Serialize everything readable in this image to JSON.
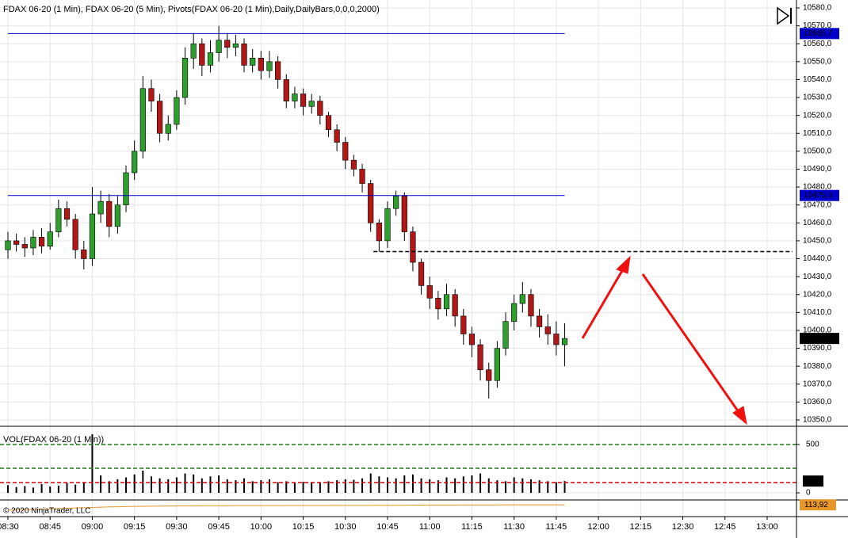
{
  "chart_data": {
    "type": "candlestick",
    "title": "FDAX 06-20 (1 Min), FDAX 06-20 (5 Min), Pivots(FDAX 06-20 (1 Min),Daily,DailyBars,0,0,0,2000)",
    "copyright": "© 2020 NinjaTrader, LLC",
    "x": [
      "08:30",
      "08:33",
      "08:36",
      "08:39",
      "08:42",
      "08:45",
      "08:48",
      "08:51",
      "08:54",
      "08:57",
      "09:00",
      "09:03",
      "09:06",
      "09:09",
      "09:12",
      "09:15",
      "09:18",
      "09:21",
      "09:24",
      "09:27",
      "09:30",
      "09:33",
      "09:36",
      "09:39",
      "09:42",
      "09:45",
      "09:48",
      "09:51",
      "09:54",
      "09:57",
      "10:00",
      "10:03",
      "10:06",
      "10:09",
      "10:12",
      "10:15",
      "10:18",
      "10:21",
      "10:24",
      "10:27",
      "10:30",
      "10:33",
      "10:36",
      "10:39",
      "10:42",
      "10:45",
      "10:48",
      "10:51",
      "10:54",
      "10:57",
      "11:00",
      "11:03",
      "11:06",
      "11:09",
      "11:12",
      "11:15",
      "11:18",
      "11:21",
      "11:24",
      "11:27",
      "11:30",
      "11:33",
      "11:36",
      "11:39",
      "11:42",
      "11:45",
      "11:48"
    ],
    "open": [
      10445,
      10450,
      10448,
      10446,
      10452,
      10447,
      10455,
      10468,
      10462,
      10445,
      10440,
      10465,
      10472,
      10458,
      10470,
      10488,
      10500,
      10535,
      10528,
      10510,
      10515,
      10530,
      10552,
      10560,
      10548,
      10555,
      10562,
      10558,
      10560,
      10548,
      10552,
      10545,
      10550,
      10540,
      10528,
      10532,
      10525,
      10528,
      10520,
      10512,
      10505,
      10495,
      10490,
      10482,
      10460,
      10450,
      10468,
      10475,
      10455,
      10438,
      10425,
      10418,
      10412,
      10420,
      10408,
      10398,
      10392,
      10378,
      10372,
      10390,
      10405,
      10415,
      10420,
      10408,
      10402,
      10398,
      10392
    ],
    "high": [
      10455,
      10454,
      10452,
      10456,
      10457,
      10460,
      10473,
      10472,
      10465,
      10450,
      10480,
      10478,
      10476,
      10475,
      10492,
      10506,
      10542,
      10540,
      10532,
      10520,
      10534,
      10558,
      10566,
      10563,
      10562,
      10570,
      10566,
      10565,
      10563,
      10557,
      10556,
      10556,
      10553,
      10543,
      10536,
      10535,
      10532,
      10531,
      10522,
      10515,
      10508,
      10498,
      10493,
      10484,
      10462,
      10472,
      10478,
      10477,
      10458,
      10440,
      10430,
      10422,
      10426,
      10423,
      10412,
      10402,
      10395,
      10382,
      10394,
      10410,
      10420,
      10427,
      10423,
      10412,
      10409,
      10405,
      10404
    ],
    "low": [
      10440,
      10444,
      10441,
      10442,
      10443,
      10445,
      10452,
      10458,
      10440,
      10434,
      10436,
      10460,
      10452,
      10454,
      10466,
      10484,
      10496,
      10522,
      10505,
      10506,
      10512,
      10526,
      10546,
      10542,
      10544,
      10550,
      10552,
      10553,
      10544,
      10544,
      10540,
      10541,
      10535,
      10524,
      10524,
      10520,
      10521,
      10515,
      10508,
      10500,
      10490,
      10486,
      10477,
      10455,
      10444,
      10446,
      10464,
      10450,
      10433,
      10420,
      10412,
      10406,
      10408,
      10402,
      10392,
      10385,
      10372,
      10362,
      10368,
      10386,
      10400,
      10410,
      10402,
      10396,
      10392,
      10386,
      10380
    ],
    "close": [
      10450,
      10448,
      10446,
      10452,
      10447,
      10455,
      10468,
      10462,
      10445,
      10440,
      10465,
      10472,
      10458,
      10470,
      10488,
      10500,
      10535,
      10528,
      10510,
      10515,
      10530,
      10552,
      10560,
      10548,
      10555,
      10562,
      10558,
      10560,
      10548,
      10552,
      10545,
      10550,
      10540,
      10528,
      10532,
      10525,
      10528,
      10520,
      10512,
      10505,
      10495,
      10490,
      10482,
      10460,
      10450,
      10468,
      10475,
      10455,
      10438,
      10425,
      10418,
      10412,
      10420,
      10408,
      10398,
      10392,
      10378,
      10372,
      10390,
      10405,
      10415,
      10420,
      10408,
      10402,
      10398,
      10392,
      10395.5
    ],
    "up_color": "#2e9e2e",
    "down_color": "#b01818",
    "last_price": {
      "value": 10395.5,
      "label": "10395,5"
    },
    "hlines": [
      {
        "value": 10565.7,
        "label": "10565,7",
        "color": "#0000c8",
        "from": "08:30",
        "to": "11:48"
      },
      {
        "value": 10475.3,
        "label": "10475,3",
        "color": "#0000c8",
        "from": "08:30",
        "to": "11:48"
      }
    ],
    "level": {
      "value": 10444,
      "from": "10:40",
      "color": "#000000"
    },
    "ylim": [
      10350,
      10580
    ],
    "yticks": [
      {
        "value": 10350,
        "label": "10350,0"
      },
      {
        "value": 10360,
        "label": "10360,0"
      },
      {
        "value": 10370,
        "label": "10370,0"
      },
      {
        "value": 10380,
        "label": "10380,0"
      },
      {
        "value": 10390,
        "label": "10390,0"
      },
      {
        "value": 10400,
        "label": "10400,0"
      },
      {
        "value": 10410,
        "label": "10410,0"
      },
      {
        "value": 10420,
        "label": "10420,0"
      },
      {
        "value": 10430,
        "label": "10430,0"
      },
      {
        "value": 10440,
        "label": "10440,0"
      },
      {
        "value": 10450,
        "label": "10450,0"
      },
      {
        "value": 10460,
        "label": "10460,0"
      },
      {
        "value": 10470,
        "label": "10470,0"
      },
      {
        "value": 10480,
        "label": "10480,0"
      },
      {
        "value": 10490,
        "label": "10490,0"
      },
      {
        "value": 10500,
        "label": "10500,0"
      },
      {
        "value": 10510,
        "label": "10510,0"
      },
      {
        "value": 10520,
        "label": "10520,0"
      },
      {
        "value": 10530,
        "label": "10530,0"
      },
      {
        "value": 10540,
        "label": "10540,0"
      },
      {
        "value": 10550,
        "label": "10550,0"
      },
      {
        "value": 10560,
        "label": "10560,0"
      },
      {
        "value": 10570,
        "label": "10570,0"
      },
      {
        "value": 10580,
        "label": "10580,0"
      }
    ],
    "xlim": [
      "08:30",
      "13:00"
    ],
    "xticks": [
      "08:30",
      "08:45",
      "09:00",
      "09:15",
      "09:30",
      "09:45",
      "10:00",
      "10:15",
      "10:30",
      "10:45",
      "11:00",
      "11:15",
      "11:30",
      "11:45",
      "12:00",
      "12:15",
      "12:30",
      "12:45",
      "13:00"
    ],
    "grid": true,
    "volume": {
      "title": "VOL(FDAX 06-20 (1 Min))",
      "values": [
        80,
        60,
        70,
        55,
        90,
        65,
        75,
        100,
        85,
        110,
        606,
        180,
        120,
        140,
        160,
        190,
        230,
        170,
        150,
        140,
        160,
        200,
        190,
        150,
        170,
        180,
        140,
        130,
        150,
        120,
        130,
        140,
        110,
        120,
        100,
        115,
        105,
        110,
        120,
        130,
        140,
        135,
        150,
        200,
        170,
        160,
        150,
        180,
        190,
        150,
        140,
        130,
        160,
        150,
        170,
        180,
        200,
        150,
        130,
        120,
        160,
        150,
        140,
        130,
        120,
        110,
        122
      ],
      "color": "#000000",
      "ylim": [
        0,
        672
      ],
      "yticks": [
        0,
        500
      ],
      "hlines": [
        {
          "value": 500,
          "color": "#1a7a1a"
        },
        {
          "value": 254,
          "color": "#1a7a1a"
        },
        {
          "value": 107,
          "color": "#e00000"
        }
      ]
    },
    "indicator": {
      "values": [
        104,
        104.5,
        105,
        105.5,
        106,
        106.5,
        107,
        107.5,
        108,
        108.5,
        109,
        109.5,
        110,
        110.3,
        110.6,
        111,
        111.2,
        111.4,
        111.6,
        111.8,
        112,
        112,
        112.1,
        112.2,
        112.2,
        112.3,
        112.3,
        112.4,
        112.4,
        112.4,
        112.5,
        112.5,
        112.5,
        112.6,
        112.6,
        112.6,
        112.7,
        112.7,
        112.7,
        112.8,
        112.8,
        112.8,
        112.9,
        112.9,
        113,
        113,
        113.1,
        113.2,
        113.3,
        113.4,
        113.5,
        113.5,
        113.6,
        113.6,
        113.7,
        113.7,
        113.8,
        113.8,
        113.8,
        113.9,
        113.9,
        113.9,
        113.9,
        113.9,
        113.9,
        113.9,
        113.92
      ],
      "color": "#e8952a",
      "ylim": [
        95,
        120
      ],
      "last": {
        "value": 113.92,
        "label": "113,92"
      }
    }
  }
}
